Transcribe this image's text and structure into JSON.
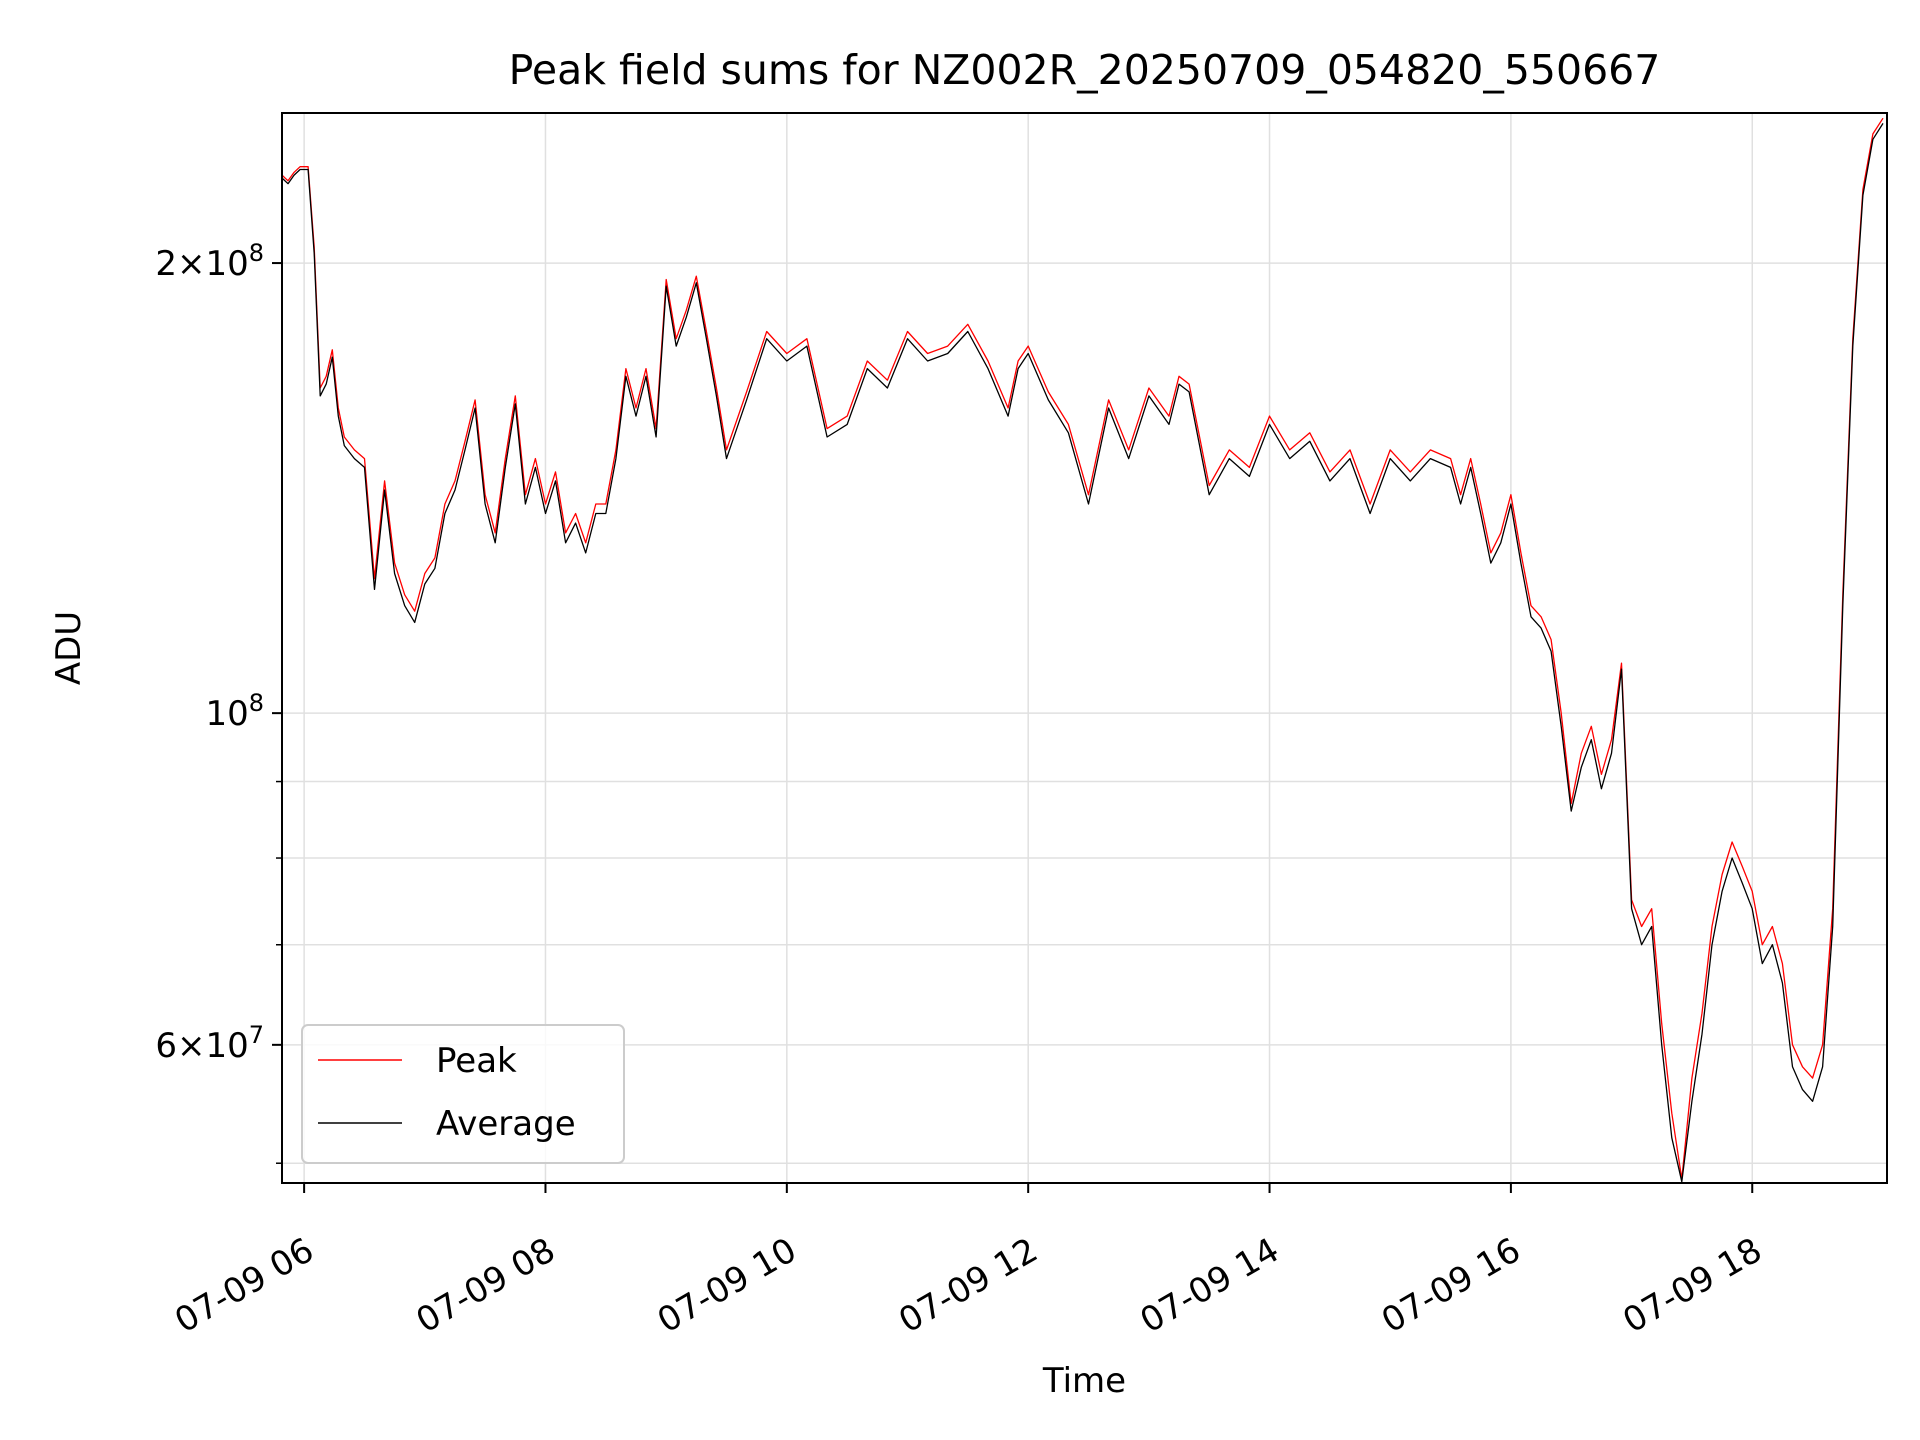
{
  "chart_data": {
    "type": "line",
    "title": "Peak field sums for NZ002R_20250709_054820_550667",
    "xlabel": "Time",
    "ylabel": "ADU",
    "yscale": "log",
    "xlim": [
      "07-09 05:49",
      "07-09 19:07"
    ],
    "ylim": [
      48500000,
      252000000
    ],
    "grid": true,
    "legend": {
      "position": "lower-left",
      "entries": [
        "Peak",
        "Average"
      ]
    },
    "xticks": [
      {
        "value": "07-09 06:00",
        "label": "07-09 06"
      },
      {
        "value": "07-09 08:00",
        "label": "07-09 08"
      },
      {
        "value": "07-09 10:00",
        "label": "07-09 10"
      },
      {
        "value": "07-09 12:00",
        "label": "07-09 12"
      },
      {
        "value": "07-09 14:00",
        "label": "07-09 14"
      },
      {
        "value": "07-09 16:00",
        "label": "07-09 16"
      },
      {
        "value": "07-09 18:00",
        "label": "07-09 18"
      }
    ],
    "yticks_major": [
      {
        "value": 60000000,
        "base": "6",
        "sup": "7"
      },
      {
        "value": 100000000,
        "base": "10",
        "sup": "8"
      },
      {
        "value": 200000000,
        "base": "2",
        "sup": "8"
      }
    ],
    "yticks_minor": [
      50000000,
      70000000,
      80000000,
      90000000,
      300000000
    ],
    "colors": {
      "peak": "#ff0000",
      "average": "#000000",
      "grid": "#e0e0e0"
    },
    "series": [
      {
        "name": "Peak",
        "x": [
          "07-09 05:49",
          "07-09 05:52",
          "07-09 05:55",
          "07-09 05:58",
          "07-09 06:02",
          "07-09 06:05",
          "07-09 06:08",
          "07-09 06:11",
          "07-09 06:14",
          "07-09 06:17",
          "07-09 06:20",
          "07-09 06:25",
          "07-09 06:30",
          "07-09 06:35",
          "07-09 06:40",
          "07-09 06:45",
          "07-09 06:50",
          "07-09 06:55",
          "07-09 07:00",
          "07-09 07:05",
          "07-09 07:10",
          "07-09 07:15",
          "07-09 07:20",
          "07-09 07:25",
          "07-09 07:30",
          "07-09 07:35",
          "07-09 07:40",
          "07-09 07:45",
          "07-09 07:50",
          "07-09 07:55",
          "07-09 08:00",
          "07-09 08:05",
          "07-09 08:10",
          "07-09 08:15",
          "07-09 08:20",
          "07-09 08:25",
          "07-09 08:30",
          "07-09 08:35",
          "07-09 08:40",
          "07-09 08:45",
          "07-09 08:50",
          "07-09 08:55",
          "07-09 09:00",
          "07-09 09:05",
          "07-09 09:10",
          "07-09 09:15",
          "07-09 09:20",
          "07-09 09:25",
          "07-09 09:30",
          "07-09 09:40",
          "07-09 09:50",
          "07-09 10:00",
          "07-09 10:10",
          "07-09 10:20",
          "07-09 10:30",
          "07-09 10:40",
          "07-09 10:50",
          "07-09 11:00",
          "07-09 11:10",
          "07-09 11:20",
          "07-09 11:30",
          "07-09 11:40",
          "07-09 11:50",
          "07-09 11:55",
          "07-09 12:00",
          "07-09 12:10",
          "07-09 12:20",
          "07-09 12:30",
          "07-09 12:40",
          "07-09 12:50",
          "07-09 13:00",
          "07-09 13:10",
          "07-09 13:15",
          "07-09 13:20",
          "07-09 13:30",
          "07-09 13:40",
          "07-09 13:50",
          "07-09 14:00",
          "07-09 14:10",
          "07-09 14:20",
          "07-09 14:30",
          "07-09 14:40",
          "07-09 14:50",
          "07-09 15:00",
          "07-09 15:10",
          "07-09 15:20",
          "07-09 15:30",
          "07-09 15:35",
          "07-09 15:40",
          "07-09 15:45",
          "07-09 15:50",
          "07-09 15:55",
          "07-09 16:00",
          "07-09 16:05",
          "07-09 16:10",
          "07-09 16:15",
          "07-09 16:20",
          "07-09 16:25",
          "07-09 16:30",
          "07-09 16:35",
          "07-09 16:40",
          "07-09 16:45",
          "07-09 16:50",
          "07-09 16:55",
          "07-09 17:00",
          "07-09 17:05",
          "07-09 17:10",
          "07-09 17:15",
          "07-09 17:20",
          "07-09 17:25",
          "07-09 17:30",
          "07-09 17:35",
          "07-09 17:40",
          "07-09 17:45",
          "07-09 17:50",
          "07-09 17:55",
          "07-09 18:00",
          "07-09 18:05",
          "07-09 18:10",
          "07-09 18:15",
          "07-09 18:20",
          "07-09 18:25",
          "07-09 18:30",
          "07-09 18:35",
          "07-09 18:40",
          "07-09 18:45",
          "07-09 18:50",
          "07-09 18:55",
          "07-09 19:00",
          "07-09 19:05"
        ],
        "values": [
          229000000,
          227000000,
          230000000,
          232000000,
          232000000,
          205000000,
          165000000,
          168000000,
          175000000,
          160000000,
          153000000,
          150000000,
          148000000,
          123000000,
          143000000,
          126000000,
          120000000,
          117000000,
          124000000,
          127000000,
          138000000,
          143000000,
          152000000,
          162000000,
          140000000,
          132000000,
          148000000,
          163000000,
          140000000,
          148000000,
          138000000,
          145000000,
          132000000,
          136000000,
          130000000,
          138000000,
          138000000,
          150000000,
          170000000,
          160000000,
          170000000,
          155000000,
          195000000,
          178000000,
          186000000,
          196000000,
          180000000,
          165000000,
          150000000,
          164000000,
          180000000,
          174000000,
          178000000,
          155000000,
          158000000,
          172000000,
          167000000,
          180000000,
          174000000,
          176000000,
          182000000,
          172000000,
          160000000,
          172000000,
          176000000,
          164000000,
          156000000,
          140000000,
          162000000,
          150000000,
          165000000,
          158000000,
          168000000,
          166000000,
          142000000,
          150000000,
          146000000,
          158000000,
          150000000,
          154000000,
          145000000,
          150000000,
          138000000,
          150000000,
          145000000,
          150000000,
          148000000,
          140000000,
          148000000,
          138000000,
          128000000,
          132000000,
          140000000,
          128000000,
          118000000,
          116000000,
          112000000,
          100000000,
          87000000,
          94000000,
          98000000,
          91000000,
          96000000,
          108000000,
          75000000,
          72000000,
          74000000,
          62000000,
          54000000,
          48800000,
          57000000,
          63000000,
          72000000,
          78000000,
          82000000,
          79000000,
          76000000,
          70000000,
          72000000,
          68000000,
          60000000,
          58000000,
          57000000,
          60000000,
          74000000,
          120000000,
          178000000,
          224000000,
          244000000,
          250000000
        ]
      },
      {
        "name": "Average",
        "x": [
          "07-09 05:49",
          "07-09 05:52",
          "07-09 05:55",
          "07-09 05:58",
          "07-09 06:02",
          "07-09 06:05",
          "07-09 06:08",
          "07-09 06:11",
          "07-09 06:14",
          "07-09 06:17",
          "07-09 06:20",
          "07-09 06:25",
          "07-09 06:30",
          "07-09 06:35",
          "07-09 06:40",
          "07-09 06:45",
          "07-09 06:50",
          "07-09 06:55",
          "07-09 07:00",
          "07-09 07:05",
          "07-09 07:10",
          "07-09 07:15",
          "07-09 07:20",
          "07-09 07:25",
          "07-09 07:30",
          "07-09 07:35",
          "07-09 07:40",
          "07-09 07:45",
          "07-09 07:50",
          "07-09 07:55",
          "07-09 08:00",
          "07-09 08:05",
          "07-09 08:10",
          "07-09 08:15",
          "07-09 08:20",
          "07-09 08:25",
          "07-09 08:30",
          "07-09 08:35",
          "07-09 08:40",
          "07-09 08:45",
          "07-09 08:50",
          "07-09 08:55",
          "07-09 09:00",
          "07-09 09:05",
          "07-09 09:10",
          "07-09 09:15",
          "07-09 09:20",
          "07-09 09:25",
          "07-09 09:30",
          "07-09 09:40",
          "07-09 09:50",
          "07-09 10:00",
          "07-09 10:10",
          "07-09 10:20",
          "07-09 10:30",
          "07-09 10:40",
          "07-09 10:50",
          "07-09 11:00",
          "07-09 11:10",
          "07-09 11:20",
          "07-09 11:30",
          "07-09 11:40",
          "07-09 11:50",
          "07-09 11:55",
          "07-09 12:00",
          "07-09 12:10",
          "07-09 12:20",
          "07-09 12:30",
          "07-09 12:40",
          "07-09 12:50",
          "07-09 13:00",
          "07-09 13:10",
          "07-09 13:15",
          "07-09 13:20",
          "07-09 13:30",
          "07-09 13:40",
          "07-09 13:50",
          "07-09 14:00",
          "07-09 14:10",
          "07-09 14:20",
          "07-09 14:30",
          "07-09 14:40",
          "07-09 14:50",
          "07-09 15:00",
          "07-09 15:10",
          "07-09 15:20",
          "07-09 15:30",
          "07-09 15:35",
          "07-09 15:40",
          "07-09 15:45",
          "07-09 15:50",
          "07-09 15:55",
          "07-09 16:00",
          "07-09 16:05",
          "07-09 16:10",
          "07-09 16:15",
          "07-09 16:20",
          "07-09 16:25",
          "07-09 16:30",
          "07-09 16:35",
          "07-09 16:40",
          "07-09 16:45",
          "07-09 16:50",
          "07-09 16:55",
          "07-09 17:00",
          "07-09 17:05",
          "07-09 17:10",
          "07-09 17:15",
          "07-09 17:20",
          "07-09 17:25",
          "07-09 17:30",
          "07-09 17:35",
          "07-09 17:40",
          "07-09 17:45",
          "07-09 17:50",
          "07-09 17:55",
          "07-09 18:00",
          "07-09 18:05",
          "07-09 18:10",
          "07-09 18:15",
          "07-09 18:20",
          "07-09 18:25",
          "07-09 18:30",
          "07-09 18:35",
          "07-09 18:40",
          "07-09 18:45",
          "07-09 18:50",
          "07-09 18:55",
          "07-09 19:00",
          "07-09 19:05"
        ],
        "values": [
          228000000,
          226000000,
          229000000,
          231000000,
          231000000,
          203000000,
          163000000,
          166000000,
          173000000,
          158000000,
          151000000,
          148000000,
          146000000,
          121000000,
          141000000,
          124000000,
          118000000,
          115000000,
          122000000,
          125000000,
          136000000,
          141000000,
          150000000,
          160000000,
          138000000,
          130000000,
          146000000,
          161000000,
          138000000,
          146000000,
          136000000,
          143000000,
          130000000,
          134000000,
          128000000,
          136000000,
          136000000,
          148000000,
          168000000,
          158000000,
          168000000,
          153000000,
          193000000,
          176000000,
          184000000,
          194000000,
          178000000,
          163000000,
          148000000,
          162000000,
          178000000,
          172000000,
          176000000,
          153000000,
          156000000,
          170000000,
          165000000,
          178000000,
          172000000,
          174000000,
          180000000,
          170000000,
          158000000,
          170000000,
          174000000,
          162000000,
          154000000,
          138000000,
          160000000,
          148000000,
          163000000,
          156000000,
          166000000,
          164000000,
          140000000,
          148000000,
          144000000,
          156000000,
          148000000,
          152000000,
          143000000,
          148000000,
          136000000,
          148000000,
          143000000,
          148000000,
          146000000,
          138000000,
          146000000,
          136000000,
          126000000,
          130000000,
          138000000,
          126000000,
          116000000,
          114000000,
          110000000,
          98000000,
          86000000,
          92000000,
          96000000,
          89000000,
          94000000,
          107000000,
          74000000,
          70000000,
          72000000,
          60000000,
          52000000,
          48600000,
          55000000,
          61000000,
          70000000,
          76000000,
          80000000,
          77000000,
          74000000,
          68000000,
          70000000,
          66000000,
          58000000,
          56000000,
          55000000,
          58000000,
          72000000,
          118000000,
          176000000,
          222000000,
          242000000,
          248000000
        ]
      }
    ]
  }
}
